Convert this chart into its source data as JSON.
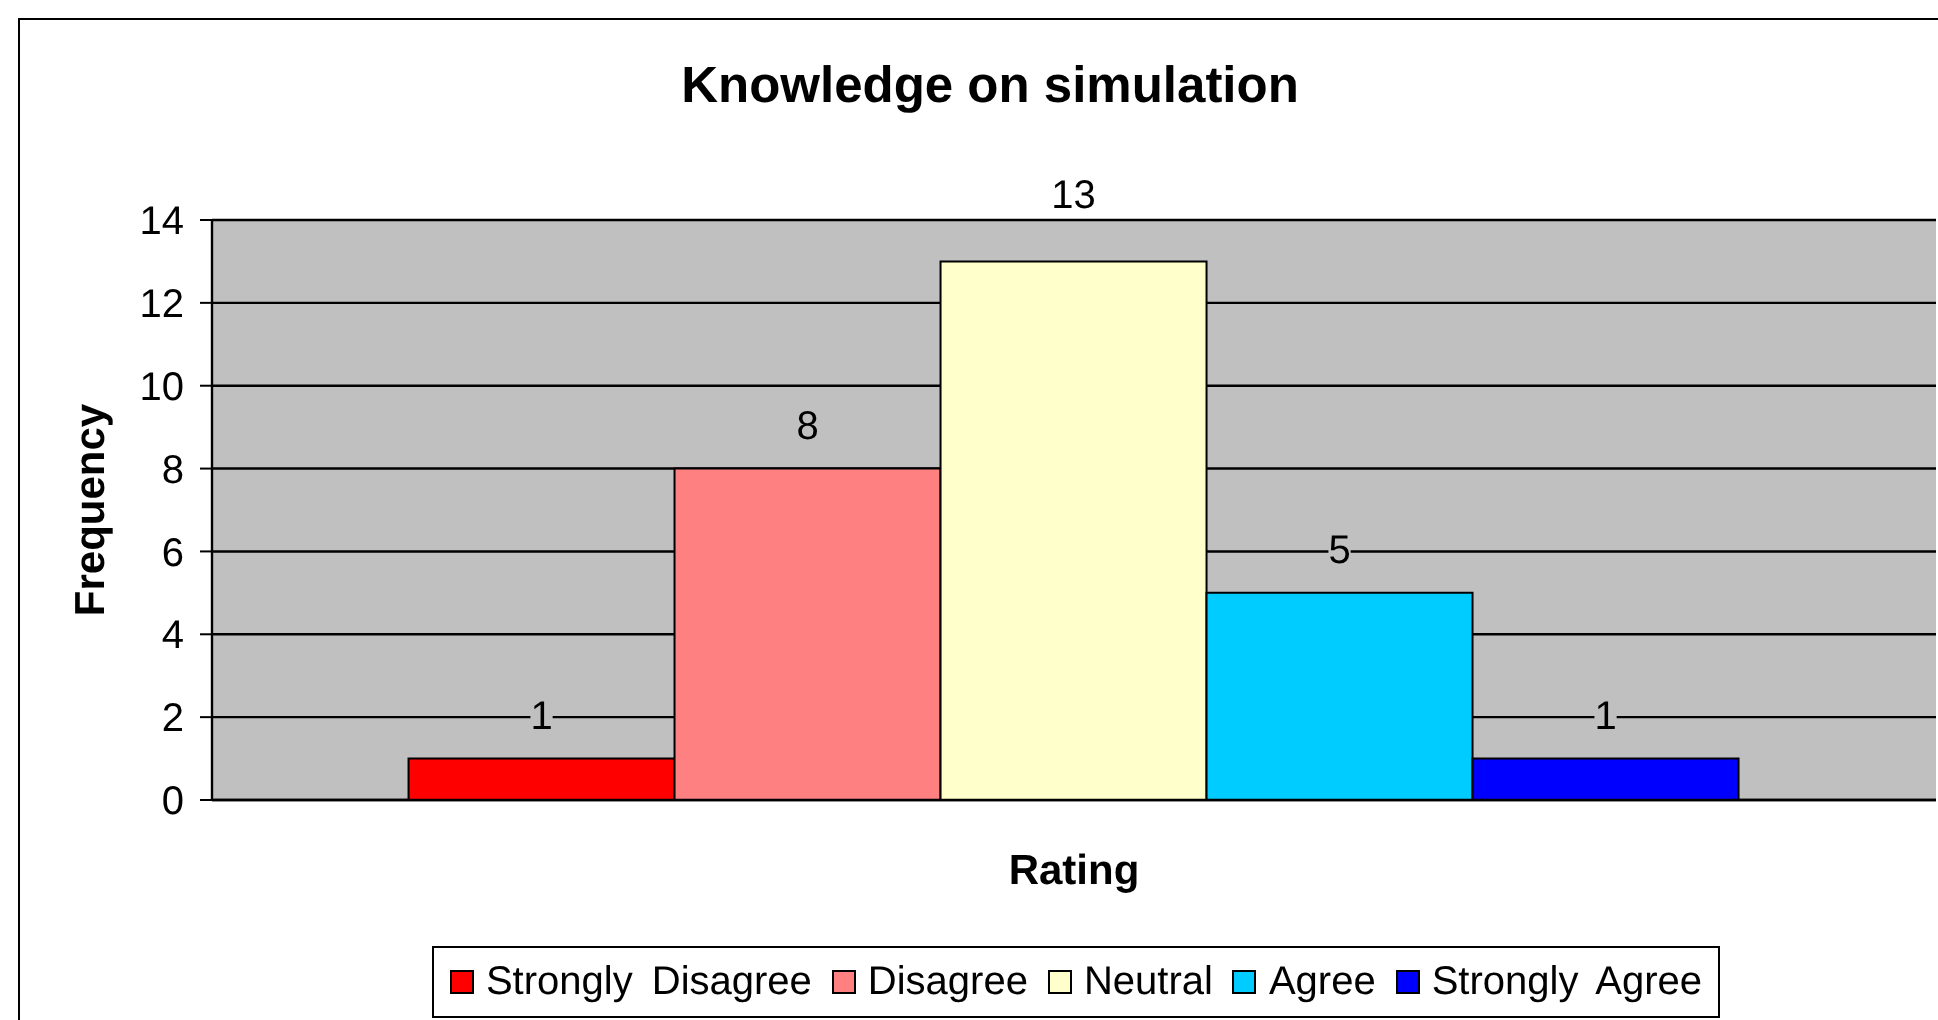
{
  "chart_data": {
    "type": "bar",
    "title": "Knowledge on simulation",
    "xlabel": "Rating",
    "ylabel": "Frequency",
    "categories": [
      null
    ],
    "series": [
      {
        "name": "Strongly Disagree",
        "color": "#ff0000",
        "values": [
          1
        ]
      },
      {
        "name": "Disagree",
        "color": "#ff8080",
        "values": [
          8
        ]
      },
      {
        "name": "Neutral",
        "color": "#ffffcc",
        "values": [
          13
        ]
      },
      {
        "name": "Agree",
        "color": "#00ccff",
        "values": [
          5
        ]
      },
      {
        "name": "Strongly Agree",
        "color": "#0000ff",
        "values": [
          1
        ]
      }
    ],
    "ylim": [
      0,
      14
    ],
    "yticks": [
      0,
      2,
      4,
      6,
      8,
      10,
      12,
      14
    ],
    "grid": "y",
    "legend": "bottom",
    "data_labels": true
  }
}
